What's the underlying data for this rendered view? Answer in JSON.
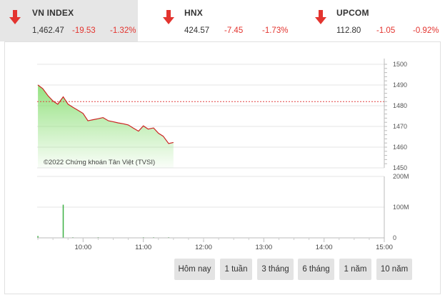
{
  "tabs": [
    {
      "name": "VN INDEX",
      "value": "1,462.47",
      "change": "-19.53",
      "percent": "-1.32%",
      "direction": "down",
      "active": true
    },
    {
      "name": "HNX",
      "value": "424.57",
      "change": "-7.45",
      "percent": "-1.73%",
      "direction": "down",
      "active": false
    },
    {
      "name": "UPCOM",
      "value": "112.80",
      "change": "-1.05",
      "percent": "-0.92%",
      "direction": "down",
      "active": false
    }
  ],
  "colors": {
    "down": "#e3342f",
    "line": "#cc2222",
    "area": "#8fe07a",
    "reference_line": "#e04040",
    "volume": "#3cb043"
  },
  "chart": {
    "copyright": "©2022 Chứng khoán Tân Việt (TVSI)",
    "price_ticks": [
      "1500",
      "1490",
      "1480",
      "1470",
      "1460",
      "1450"
    ],
    "volume_ticks": [
      "200M",
      "100M",
      "0"
    ],
    "time_ticks": [
      "10:00",
      "11:00",
      "12:00",
      "13:00",
      "14:00",
      "15:00"
    ]
  },
  "chart_data": {
    "type": "line",
    "reference_price": 1482,
    "ylim": [
      1450,
      1500
    ],
    "series": [
      {
        "values": [
          [
            9.25,
            1490
          ],
          [
            9.33,
            1488
          ],
          [
            9.42,
            1485
          ],
          [
            9.5,
            1482
          ],
          [
            9.58,
            1481
          ],
          [
            9.67,
            1484
          ],
          [
            9.75,
            1481
          ],
          [
            9.83,
            1479
          ],
          [
            9.92,
            1478
          ],
          [
            10.0,
            1476
          ],
          [
            10.08,
            1473
          ],
          [
            10.17,
            1473
          ],
          [
            10.25,
            1474
          ],
          [
            10.33,
            1474
          ],
          [
            10.42,
            1473
          ],
          [
            10.5,
            1472
          ],
          [
            10.58,
            1472
          ],
          [
            10.67,
            1471
          ],
          [
            10.75,
            1471
          ],
          [
            10.83,
            1469
          ],
          [
            10.92,
            1468
          ],
          [
            11.0,
            1470
          ],
          [
            11.08,
            1469
          ],
          [
            11.17,
            1469
          ],
          [
            11.25,
            1467
          ],
          [
            11.33,
            1465
          ],
          [
            11.42,
            1462
          ],
          [
            11.5,
            1462
          ]
        ]
      }
    ],
    "volume_ylim": [
      0,
      200
    ],
    "volume_bars": [
      [
        9.25,
        6
      ],
      [
        9.67,
        108
      ],
      [
        9.83,
        2
      ],
      [
        10.25,
        2
      ],
      [
        11.0,
        2
      ],
      [
        11.17,
        2
      ],
      [
        11.42,
        2
      ]
    ]
  },
  "range_buttons": [
    "Hôm nay",
    "1 tuần",
    "3 tháng",
    "6 tháng",
    "1 năm",
    "10 năm"
  ]
}
